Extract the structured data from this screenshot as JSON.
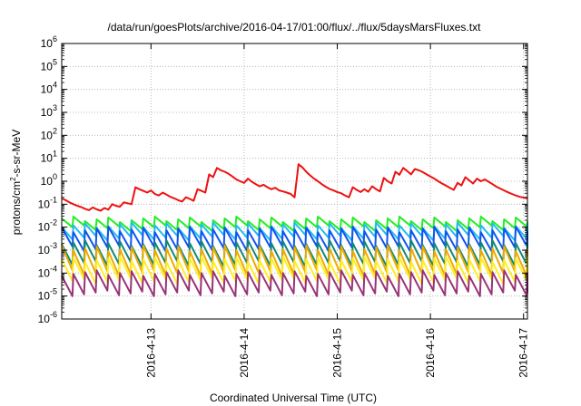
{
  "chart_data": {
    "type": "line",
    "title": "/data/run/goesPlots/archive/2016-04-17/01:00/flux/../flux/5daysMarsFluxes.txt",
    "xlabel": "Coordinated Universal Time (UTC)",
    "ylabel": "protons/cm²-s-sr-MeV",
    "ylabel_parts": {
      "main": "protons/cm",
      "sup": "2",
      "rest": "-s-sr-MeV"
    },
    "y_scale": "log",
    "ylim": [
      1e-06,
      1000000.0
    ],
    "y_ticks": [
      {
        "mantissa": "10",
        "exp": "-6",
        "value": 1e-06
      },
      {
        "mantissa": "10",
        "exp": "-5",
        "value": 1e-05
      },
      {
        "mantissa": "10",
        "exp": "-4",
        "value": 0.0001
      },
      {
        "mantissa": "10",
        "exp": "-3",
        "value": 0.001
      },
      {
        "mantissa": "10",
        "exp": "-2",
        "value": 0.01
      },
      {
        "mantissa": "10",
        "exp": "-1",
        "value": 0.1
      },
      {
        "mantissa": "10",
        "exp": "0",
        "value": 1
      },
      {
        "mantissa": "10",
        "exp": "1",
        "value": 10
      },
      {
        "mantissa": "10",
        "exp": "2",
        "value": 100
      },
      {
        "mantissa": "10",
        "exp": "3",
        "value": 1000
      },
      {
        "mantissa": "10",
        "exp": "4",
        "value": 10000
      },
      {
        "mantissa": "10",
        "exp": "5",
        "value": 100000
      },
      {
        "mantissa": "10",
        "exp": "6",
        "value": 1000000
      }
    ],
    "xlim": [
      "2016-04-12T01:00",
      "2016-04-17T01:00"
    ],
    "x_ticks": [
      {
        "label": "2016-4-13",
        "date": "2016-04-13T00:00"
      },
      {
        "label": "2016-4-14",
        "date": "2016-04-14T00:00"
      },
      {
        "label": "2016-4-15",
        "date": "2016-04-15T00:00"
      },
      {
        "label": "2016-4-16",
        "date": "2016-04-16T00:00"
      },
      {
        "label": "2016-4-17",
        "date": "2016-04-17T00:00"
      }
    ],
    "grid": true,
    "legend": "none",
    "series": [
      {
        "color": "#ee1111",
        "shape": "irregular",
        "points": [
          [
            "2016-04-12T01:00",
            0.18
          ],
          [
            "2016-04-12T02:00",
            0.15
          ],
          [
            "2016-04-12T03:00",
            0.12
          ],
          [
            "2016-04-12T04:00",
            0.1
          ],
          [
            "2016-04-12T05:00",
            0.085
          ],
          [
            "2016-04-12T06:00",
            0.075
          ],
          [
            "2016-04-12T07:00",
            0.063
          ],
          [
            "2016-04-12T08:00",
            0.055
          ],
          [
            "2016-04-12T09:00",
            0.072
          ],
          [
            "2016-04-12T10:00",
            0.06
          ],
          [
            "2016-04-12T11:00",
            0.052
          ],
          [
            "2016-04-12T12:00",
            0.068
          ],
          [
            "2016-04-12T13:00",
            0.058
          ],
          [
            "2016-04-12T14:00",
            0.1
          ],
          [
            "2016-04-12T15:00",
            0.085
          ],
          [
            "2016-04-12T16:00",
            0.078
          ],
          [
            "2016-04-12T17:00",
            0.12
          ],
          [
            "2016-04-12T18:00",
            0.11
          ],
          [
            "2016-04-12T19:00",
            0.1
          ],
          [
            "2016-04-12T20:00",
            0.55
          ],
          [
            "2016-04-12T21:00",
            0.45
          ],
          [
            "2016-04-12T22:00",
            0.38
          ],
          [
            "2016-04-12T23:00",
            0.32
          ],
          [
            "2016-04-13T00:00",
            0.4
          ],
          [
            "2016-04-13T01:00",
            0.28
          ],
          [
            "2016-04-13T02:00",
            0.24
          ],
          [
            "2016-04-13T03:00",
            0.32
          ],
          [
            "2016-04-13T04:00",
            0.26
          ],
          [
            "2016-04-13T05:00",
            0.21
          ],
          [
            "2016-04-13T06:00",
            0.18
          ],
          [
            "2016-04-13T07:00",
            0.15
          ],
          [
            "2016-04-13T08:00",
            0.13
          ],
          [
            "2016-04-13T09:00",
            0.2
          ],
          [
            "2016-04-13T10:00",
            0.17
          ],
          [
            "2016-04-13T11:00",
            0.14
          ],
          [
            "2016-04-13T12:00",
            0.45
          ],
          [
            "2016-04-13T13:00",
            0.38
          ],
          [
            "2016-04-13T14:00",
            0.32
          ],
          [
            "2016-04-13T15:00",
            2.0
          ],
          [
            "2016-04-13T16:00",
            1.5
          ],
          [
            "2016-04-13T17:00",
            3.8
          ],
          [
            "2016-04-13T18:00",
            3.0
          ],
          [
            "2016-04-13T19:00",
            2.6
          ],
          [
            "2016-04-13T20:00",
            2.1
          ],
          [
            "2016-04-13T21:00",
            1.6
          ],
          [
            "2016-04-13T22:00",
            1.2
          ],
          [
            "2016-04-13T23:00",
            1.0
          ],
          [
            "2016-04-14T00:00",
            0.85
          ],
          [
            "2016-04-14T01:00",
            1.3
          ],
          [
            "2016-04-14T02:00",
            0.95
          ],
          [
            "2016-04-14T03:00",
            0.75
          ],
          [
            "2016-04-14T04:00",
            0.6
          ],
          [
            "2016-04-14T05:00",
            0.7
          ],
          [
            "2016-04-14T06:00",
            0.55
          ],
          [
            "2016-04-14T07:00",
            0.45
          ],
          [
            "2016-04-14T08:00",
            0.52
          ],
          [
            "2016-04-14T09:00",
            0.4
          ],
          [
            "2016-04-14T10:00",
            0.36
          ],
          [
            "2016-04-14T11:00",
            0.32
          ],
          [
            "2016-04-14T12:00",
            0.28
          ],
          [
            "2016-04-14T13:00",
            0.2
          ],
          [
            "2016-04-14T14:00",
            5.5
          ],
          [
            "2016-04-14T15:00",
            4.0
          ],
          [
            "2016-04-14T16:00",
            2.6
          ],
          [
            "2016-04-14T17:00",
            1.8
          ],
          [
            "2016-04-14T18:00",
            1.3
          ],
          [
            "2016-04-14T19:00",
            1.0
          ],
          [
            "2016-04-14T20:00",
            0.75
          ],
          [
            "2016-04-14T21:00",
            0.58
          ],
          [
            "2016-04-14T22:00",
            0.46
          ],
          [
            "2016-04-14T23:00",
            0.4
          ],
          [
            "2016-04-15T00:00",
            0.34
          ],
          [
            "2016-04-15T01:00",
            0.3
          ],
          [
            "2016-04-15T02:00",
            0.24
          ],
          [
            "2016-04-15T03:00",
            0.2
          ],
          [
            "2016-04-15T04:00",
            0.55
          ],
          [
            "2016-04-15T05:00",
            0.42
          ],
          [
            "2016-04-15T06:00",
            0.34
          ],
          [
            "2016-04-15T07:00",
            0.45
          ],
          [
            "2016-04-15T08:00",
            0.35
          ],
          [
            "2016-04-15T09:00",
            0.6
          ],
          [
            "2016-04-15T10:00",
            0.45
          ],
          [
            "2016-04-15T11:00",
            0.36
          ],
          [
            "2016-04-15T12:00",
            1.4
          ],
          [
            "2016-04-15T13:00",
            1.0
          ],
          [
            "2016-04-15T14:00",
            0.8
          ],
          [
            "2016-04-15T15:00",
            2.6
          ],
          [
            "2016-04-15T16:00",
            1.9
          ],
          [
            "2016-04-15T17:00",
            3.8
          ],
          [
            "2016-04-15T18:00",
            2.8
          ],
          [
            "2016-04-15T19:00",
            2.0
          ],
          [
            "2016-04-15T20:00",
            3.4
          ],
          [
            "2016-04-15T21:00",
            3.0
          ],
          [
            "2016-04-15T22:00",
            2.5
          ],
          [
            "2016-04-15T23:00",
            2.0
          ],
          [
            "2016-04-16T00:00",
            1.6
          ],
          [
            "2016-04-16T01:00",
            1.3
          ],
          [
            "2016-04-16T02:00",
            1.0
          ],
          [
            "2016-04-16T03:00",
            0.8
          ],
          [
            "2016-04-16T04:00",
            0.65
          ],
          [
            "2016-04-16T05:00",
            0.52
          ],
          [
            "2016-04-16T06:00",
            0.42
          ],
          [
            "2016-04-16T07:00",
            0.85
          ],
          [
            "2016-04-16T08:00",
            0.65
          ],
          [
            "2016-04-16T09:00",
            1.5
          ],
          [
            "2016-04-16T10:00",
            1.1
          ],
          [
            "2016-04-16T11:00",
            0.8
          ],
          [
            "2016-04-16T12:00",
            1.3
          ],
          [
            "2016-04-16T13:00",
            1.0
          ],
          [
            "2016-04-16T14:00",
            1.2
          ],
          [
            "2016-04-16T15:00",
            0.95
          ],
          [
            "2016-04-16T16:00",
            0.75
          ],
          [
            "2016-04-16T17:00",
            0.58
          ],
          [
            "2016-04-16T18:00",
            0.48
          ],
          [
            "2016-04-16T19:00",
            0.4
          ],
          [
            "2016-04-16T20:00",
            0.33
          ],
          [
            "2016-04-16T21:00",
            0.28
          ],
          [
            "2016-04-16T22:00",
            0.24
          ],
          [
            "2016-04-16T23:00",
            0.21
          ],
          [
            "2016-04-17T01:00",
            0.18
          ]
        ]
      },
      {
        "color": "#22ee22",
        "shape": "sawtooth",
        "peak": 0.022,
        "trough": 0.009
      },
      {
        "color": "#22bbee",
        "shape": "sawtooth",
        "peak": 0.012,
        "trough": 0.0035
      },
      {
        "color": "#1155ee",
        "shape": "sawtooth",
        "peak": 0.008,
        "trough": 0.0012
      },
      {
        "color": "#118877",
        "shape": "sawtooth",
        "peak": 0.002,
        "trough": 0.00025
      },
      {
        "color": "#eeaa00",
        "shape": "sawtooth",
        "peak": 0.0012,
        "trough": 0.0001
      },
      {
        "color": "#ffee22",
        "shape": "sawtooth",
        "peak": 0.0004,
        "trough": 4.5e-05
      },
      {
        "color": "#993377",
        "shape": "sawtooth",
        "peak": 0.0001,
        "trough": 1.3e-05
      }
    ],
    "sawtooth_period_hours": 3
  }
}
